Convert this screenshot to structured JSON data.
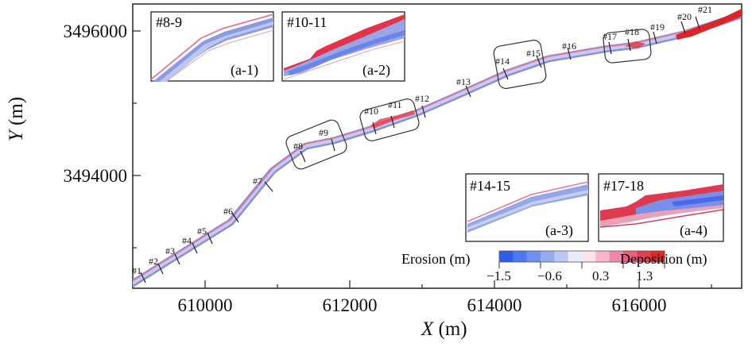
{
  "axes": {
    "x_label": "X",
    "x_unit": "(m)",
    "y_label": "Y",
    "y_unit": "(m)",
    "x_ticks": [
      "610000",
      "612000",
      "614000",
      "616000"
    ],
    "y_ticks": [
      "3494000",
      "3496000"
    ]
  },
  "sections": [
    "#1",
    "#2",
    "#3",
    "#4",
    "#5",
    "#6",
    "#7",
    "#8",
    "#9",
    "#10",
    "#11",
    "#12",
    "#13",
    "#14",
    "#15",
    "#16",
    "#17",
    "#18",
    "#19",
    "#20",
    "#21"
  ],
  "insets": [
    {
      "title": "#8-9",
      "tag": "(a-1)"
    },
    {
      "title": "#10-11",
      "tag": "(a-2)"
    },
    {
      "title": "#14-15",
      "tag": "(a-3)"
    },
    {
      "title": "#17-18",
      "tag": "(a-4)"
    }
  ],
  "colorbar": {
    "left_label": "Erosion (m)",
    "right_label": "Deposition (m)",
    "ticks": [
      "−1.5",
      "−0.6",
      "0.3",
      "1.3"
    ],
    "colors": [
      "#2f5de8",
      "#4d78ef",
      "#6f90ef",
      "#97adf0",
      "#bcc7f1",
      "#e9ecf8",
      "#fbe2ec",
      "#f6b6cb",
      "#ef88a8",
      "#e85f80",
      "#e24050",
      "#de2a2a"
    ]
  }
}
